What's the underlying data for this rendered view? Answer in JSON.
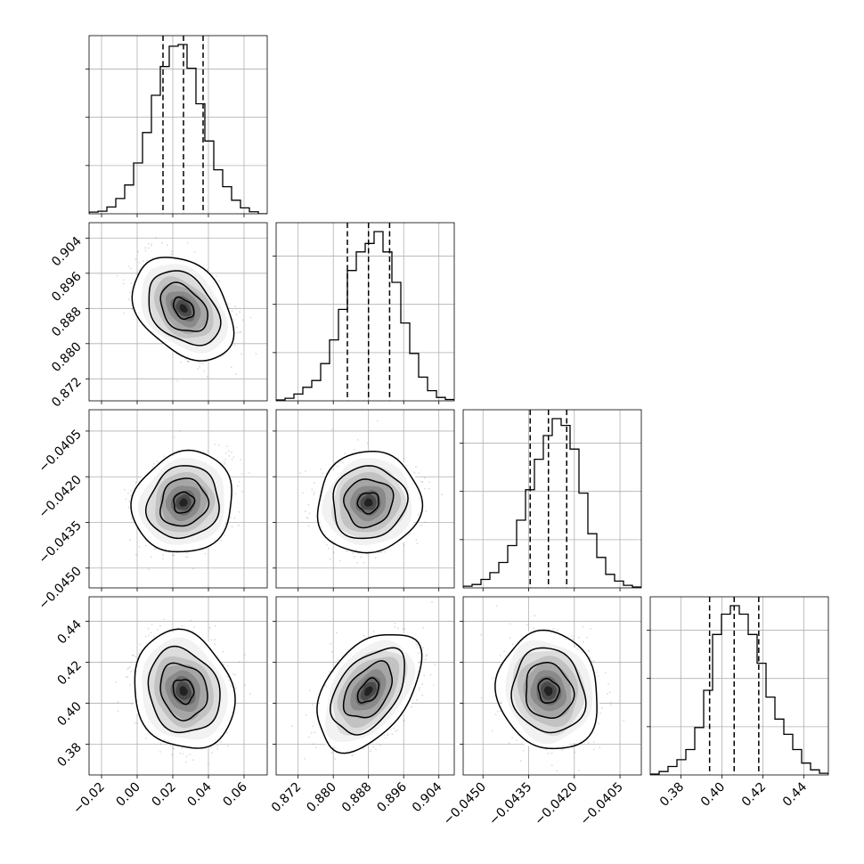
{
  "colors": {
    "background": "#ffffff",
    "line": "#000000",
    "grid": "#b0b0b0",
    "scatter": "#7f7f7f"
  },
  "chart_data": {
    "type": "corner",
    "grid": true,
    "n_params": 4,
    "params": [
      {
        "range": [
          -0.027,
          0.073
        ],
        "ticks": [
          "−0.02",
          "0.00",
          "0.02",
          "0.04",
          "0.06"
        ],
        "tick_values": [
          -0.02,
          0.0,
          0.02,
          0.04,
          0.06
        ],
        "mean": 0.026,
        "sigma": 0.0115,
        "quantiles": [
          0.0145,
          0.026,
          0.037
        ]
      },
      {
        "range": [
          0.867,
          0.9075
        ],
        "ticks": [
          "0.872",
          "0.880",
          "0.888",
          "0.896",
          "0.904"
        ],
        "tick_values": [
          0.872,
          0.88,
          0.888,
          0.896,
          0.904
        ],
        "mean": 0.888,
        "sigma": 0.0048,
        "quantiles": [
          0.8832,
          0.888,
          0.8928
        ]
      },
      {
        "range": [
          -0.04565,
          -0.0398
        ],
        "ticks": [
          "−0.0450",
          "−0.0435",
          "−0.0420",
          "−0.0405"
        ],
        "tick_values": [
          -0.045,
          -0.0435,
          -0.042,
          -0.0405
        ],
        "mean": -0.04285,
        "sigma": 0.00068,
        "quantiles": [
          -0.04345,
          -0.04285,
          -0.04225
        ]
      },
      {
        "range": [
          0.365,
          0.452
        ],
        "ticks": [
          "0.38",
          "0.40",
          "0.42",
          "0.44"
        ],
        "tick_values": [
          0.38,
          0.4,
          0.42,
          0.44
        ],
        "mean": 0.406,
        "sigma": 0.0118,
        "quantiles": [
          0.394,
          0.406,
          0.418
        ]
      }
    ],
    "correlations": {
      "1-0": -0.35,
      "2-0": 0.1,
      "2-1": 0.05,
      "3-0": -0.15,
      "3-1": 0.45,
      "3-2": -0.1
    },
    "histograms": [
      [
        0.01,
        0.015,
        0.04,
        0.09,
        0.17,
        0.3,
        0.48,
        0.7,
        0.87,
        0.99,
        1.0,
        0.86,
        0.65,
        0.43,
        0.26,
        0.16,
        0.08,
        0.035,
        0.012,
        0.0
      ],
      [
        0.005,
        0.015,
        0.04,
        0.08,
        0.12,
        0.22,
        0.36,
        0.54,
        0.77,
        0.88,
        0.93,
        1.0,
        0.88,
        0.7,
        0.46,
        0.28,
        0.14,
        0.06,
        0.02,
        0.008
      ],
      [
        0.01,
        0.02,
        0.05,
        0.09,
        0.15,
        0.25,
        0.4,
        0.58,
        0.76,
        0.9,
        1.0,
        0.96,
        0.82,
        0.56,
        0.32,
        0.18,
        0.08,
        0.04,
        0.015,
        0.005
      ],
      [
        0.005,
        0.02,
        0.05,
        0.09,
        0.15,
        0.28,
        0.5,
        0.83,
        0.95,
        1.0,
        0.95,
        0.83,
        0.66,
        0.46,
        0.33,
        0.24,
        0.15,
        0.07,
        0.03,
        0.01
      ]
    ]
  }
}
